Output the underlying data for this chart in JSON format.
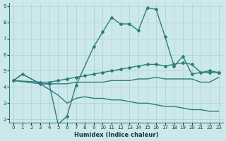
{
  "xlabel": "Humidex (Indice chaleur)",
  "xlim": [
    -0.5,
    23.5
  ],
  "ylim": [
    1.8,
    9.2
  ],
  "yticks": [
    2,
    3,
    4,
    5,
    6,
    7,
    8,
    9
  ],
  "xticks": [
    0,
    1,
    2,
    3,
    4,
    5,
    6,
    7,
    8,
    9,
    10,
    11,
    12,
    13,
    14,
    15,
    16,
    17,
    18,
    19,
    20,
    21,
    22,
    23
  ],
  "bg_color": "#cce8ea",
  "line_color": "#2d7b7b",
  "grid_color": "#b0d4d8",
  "line1_x": [
    0,
    1,
    3,
    4,
    5,
    6,
    7,
    9,
    10,
    11,
    12,
    13,
    14,
    15,
    16,
    17,
    18,
    19,
    20,
    22,
    23
  ],
  "line1_y": [
    4.4,
    4.8,
    4.2,
    4.2,
    1.7,
    2.2,
    4.1,
    6.5,
    7.4,
    8.3,
    7.9,
    7.9,
    7.5,
    8.9,
    8.8,
    7.1,
    5.3,
    5.9,
    4.8,
    5.0,
    4.9
  ],
  "line2_x": [
    0,
    3,
    4,
    5,
    6,
    7,
    8,
    9,
    10,
    11,
    12,
    13,
    14,
    15,
    16,
    17,
    18,
    19,
    20,
    21,
    22,
    23
  ],
  "line2_y": [
    4.4,
    4.3,
    4.3,
    4.4,
    4.5,
    4.6,
    4.7,
    4.8,
    4.9,
    5.0,
    5.1,
    5.2,
    5.3,
    5.4,
    5.4,
    5.3,
    5.4,
    5.5,
    5.4,
    4.9,
    4.9,
    4.9
  ],
  "line3_x": [
    0,
    3,
    4,
    5,
    6,
    7,
    8,
    9,
    10,
    11,
    12,
    13,
    14,
    15,
    16,
    17,
    18,
    19,
    20,
    21,
    22,
    23
  ],
  "line3_y": [
    4.4,
    4.2,
    4.2,
    4.2,
    4.2,
    4.3,
    4.3,
    4.3,
    4.3,
    4.4,
    4.4,
    4.4,
    4.5,
    4.5,
    4.6,
    4.5,
    4.5,
    4.5,
    4.5,
    4.3,
    4.3,
    4.6
  ],
  "line4_x": [
    0,
    1,
    3,
    5,
    6,
    7,
    8,
    9,
    10,
    11,
    12,
    13,
    14,
    15,
    16,
    17,
    18,
    19,
    20,
    21,
    22,
    23
  ],
  "line4_y": [
    4.4,
    4.8,
    4.2,
    3.5,
    3.0,
    3.3,
    3.4,
    3.3,
    3.3,
    3.2,
    3.2,
    3.1,
    3.0,
    3.0,
    2.9,
    2.8,
    2.8,
    2.7,
    2.6,
    2.6,
    2.5,
    2.5
  ]
}
